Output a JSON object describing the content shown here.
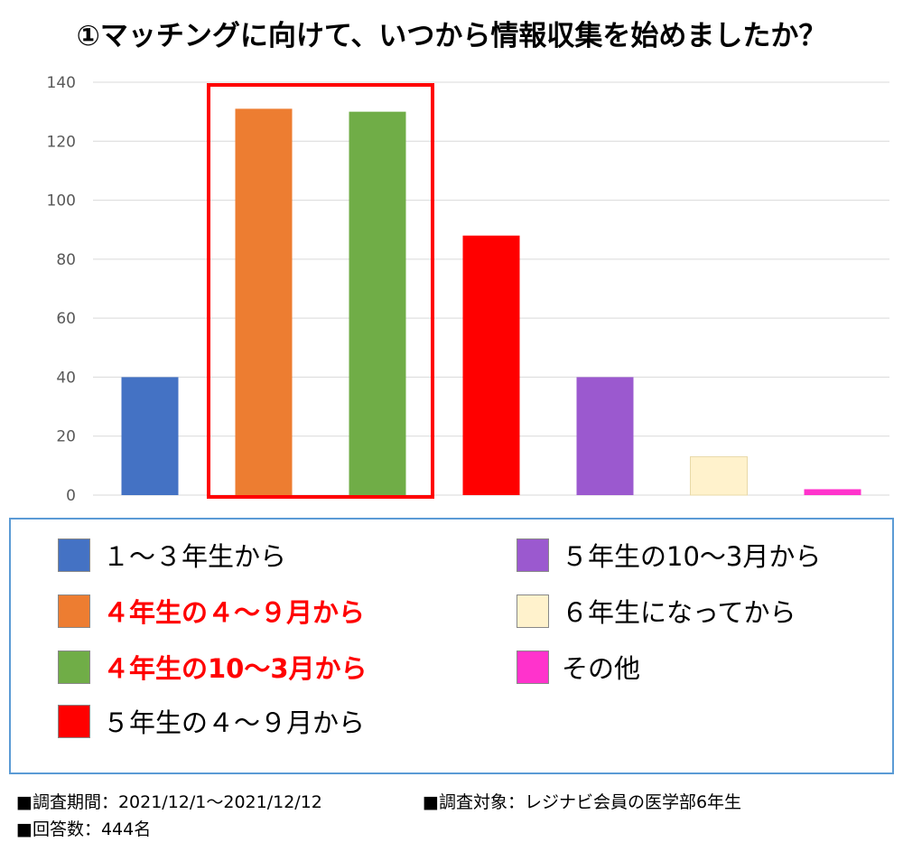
{
  "chart_data": {
    "type": "bar",
    "title": "①マッチングに向けて、いつから情報収集を始めましたか？",
    "categories": [
      "１～３年生から",
      "４年生の４～９月から",
      "４年生の10～3月から",
      "５年生の４～９月から",
      "５年生の10～3月から",
      "６年生になってから",
      "その他"
    ],
    "values": [
      40,
      131,
      130,
      88,
      40,
      13,
      2
    ],
    "colors": [
      "#4472c4",
      "#ed7d31",
      "#70ad47",
      "#ff0000",
      "#9b59cf",
      "#fff2cc",
      "#ff33cc"
    ],
    "highlighted": [
      1,
      2
    ],
    "ylim": [
      0,
      140
    ],
    "yticks": [
      0,
      20,
      40,
      60,
      80,
      100,
      120,
      140
    ],
    "grid": true,
    "legend_position": "bottom",
    "xlabel": "",
    "ylabel": ""
  },
  "footer": {
    "period": "■調査期間：2021/12/1～2021/12/12",
    "target": "■調査対象：レジナビ会員の医学部6年生",
    "responses": "■回答数：444名"
  }
}
